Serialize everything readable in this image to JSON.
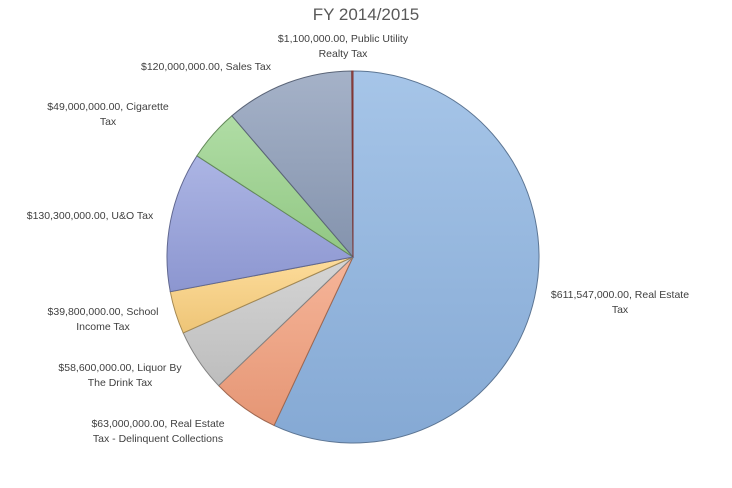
{
  "chart_data": {
    "type": "pie",
    "title": "FY 2014/2015",
    "slices": [
      {
        "label": "$611,547,000.00, Real Estate Tax",
        "value": 611547000,
        "color": "#8db4e2",
        "label_lines": [
          "$611,547,000.00, Real Estate",
          "Tax"
        ]
      },
      {
        "label": "$63,000,000.00, Real Estate Tax - Delinquent Collections",
        "value": 63000000,
        "color": "#f4a07c",
        "label_lines": [
          "$63,000,000.00, Real Estate",
          "Tax - Delinquent Collections"
        ]
      },
      {
        "label": "$58,600,000.00, Liquor By The Drink Tax",
        "value": 58600000,
        "color": "#c9c9c9",
        "label_lines": [
          "$58,600,000.00, Liquor By",
          "The Drink Tax"
        ]
      },
      {
        "label": "$39,800,000.00, School Income Tax",
        "value": 39800000,
        "color": "#fdd27f",
        "label_lines": [
          "$39,800,000.00, School",
          "Income Tax"
        ]
      },
      {
        "label": "$130,300,000.00, U&O Tax",
        "value": 130300000,
        "color": "#95a0dd",
        "label_lines": [
          "$130,300,000.00, U&O Tax"
        ]
      },
      {
        "label": "$49,000,000.00, Cigarette Tax",
        "value": 49000000,
        "color": "#9ad48b",
        "label_lines": [
          "$49,000,000.00, Cigarette",
          "Tax"
        ]
      },
      {
        "label": "$120,000,000.00, Sales Tax",
        "value": 120000000,
        "color": "#8c9cb8",
        "label_lines": [
          "$120,000,000.00, Sales Tax"
        ]
      },
      {
        "label": "$1,100,000.00, Public Utility Realty Tax",
        "value": 1100000,
        "color": "#c0504d",
        "label_lines": [
          "$1,100,000.00, Public Utility",
          "Realty Tax"
        ]
      }
    ]
  }
}
